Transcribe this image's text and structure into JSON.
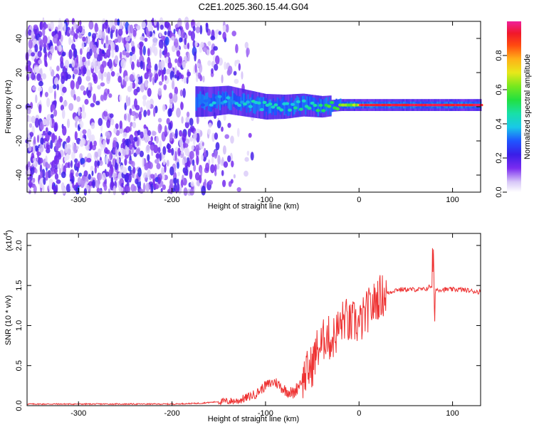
{
  "title": "C2E1.2025.360.15.44.G04",
  "chart_data": [
    {
      "type": "heatmap",
      "xlabel": "Height of straight line (km)",
      "ylabel": "Frequency (Hz)",
      "xlim": [
        -355,
        130
      ],
      "ylim": [
        -50,
        50
      ],
      "xticks": [
        -300,
        -200,
        -100,
        0,
        100
      ],
      "xtick_labels": [
        "-300",
        "-200",
        "-100",
        "0",
        "100"
      ],
      "yticks": [
        -40,
        -20,
        0,
        20,
        40
      ],
      "ytick_labels": [
        "-40",
        "-20",
        "0",
        "20",
        "40"
      ],
      "colorbar": {
        "label": "Normalized spectral amplitude",
        "range": [
          0,
          1
        ],
        "ticks": [
          0.0,
          0.2,
          0.4,
          0.6,
          0.8
        ],
        "tick_labels": [
          "0.0",
          "0.2",
          "0.4",
          "0.6",
          "0.8"
        ]
      },
      "signal": {
        "description_points": [
          {
            "x": -175,
            "freq": 3,
            "amp": 0.3
          },
          {
            "x": -160,
            "freq": 3,
            "amp": 0.4
          },
          {
            "x": -140,
            "freq": 4,
            "amp": 0.4
          },
          {
            "x": -120,
            "freq": 2,
            "amp": 0.45
          },
          {
            "x": -100,
            "freq": 0,
            "amp": 0.5
          },
          {
            "x": -80,
            "freq": 0,
            "amp": 0.45
          },
          {
            "x": -60,
            "freq": 1,
            "amp": 0.5
          },
          {
            "x": -40,
            "freq": 0,
            "amp": 0.55
          },
          {
            "x": -20,
            "freq": 1,
            "amp": 0.7
          },
          {
            "x": 0,
            "freq": 1,
            "amp": 0.75
          },
          {
            "x": 20,
            "freq": 1,
            "amp": 0.95
          },
          {
            "x": 50,
            "freq": 1,
            "amp": 0.95
          },
          {
            "x": 80,
            "freq": 1,
            "amp": 0.9
          },
          {
            "x": 100,
            "freq": 1,
            "amp": 0.95
          },
          {
            "x": 130,
            "freq": 1,
            "amp": 0.95
          }
        ]
      }
    },
    {
      "type": "line",
      "xlabel": "Height of straight line (km)",
      "ylabel": "SNR (10 * v/v)",
      "y_multiplier_label": "(x10",
      "y_multiplier_exp": "4",
      "xlim": [
        -355,
        130
      ],
      "ylim": [
        0,
        2.15
      ],
      "xticks": [
        -300,
        -200,
        -100,
        0,
        100
      ],
      "xtick_labels": [
        "-300",
        "-200",
        "-100",
        "0",
        "100"
      ],
      "yticks": [
        0.0,
        0.5,
        1.0,
        1.5,
        2.0
      ],
      "ytick_labels": [
        "0.0",
        "0.5",
        "1.0",
        "1.5",
        "2.0"
      ],
      "color": "#ee3333",
      "series": [
        {
          "name": "SNR",
          "x": [
            -355,
            -300,
            -250,
            -200,
            -170,
            -150,
            -130,
            -120,
            -110,
            -100,
            -90,
            -80,
            -70,
            -60,
            -50,
            -45,
            -40,
            -35,
            -30,
            -25,
            -20,
            -15,
            -10,
            -5,
            0,
            5,
            10,
            15,
            20,
            30,
            40,
            50,
            60,
            70,
            75,
            78,
            80,
            82,
            85,
            90,
            100,
            110,
            120,
            130
          ],
          "values": [
            0.02,
            0.02,
            0.02,
            0.02,
            0.03,
            0.05,
            0.06,
            0.1,
            0.15,
            0.25,
            0.3,
            0.2,
            0.15,
            0.35,
            0.5,
            0.7,
            0.75,
            0.9,
            0.8,
            0.9,
            1.0,
            1.1,
            1.0,
            1.05,
            1.0,
            1.1,
            1.2,
            1.25,
            1.35,
            1.4,
            1.45,
            1.45,
            1.45,
            1.45,
            1.48,
            1.5,
            1.2,
            1.45,
            1.45,
            1.45,
            1.45,
            1.45,
            1.43,
            1.42
          ]
        }
      ]
    }
  ]
}
